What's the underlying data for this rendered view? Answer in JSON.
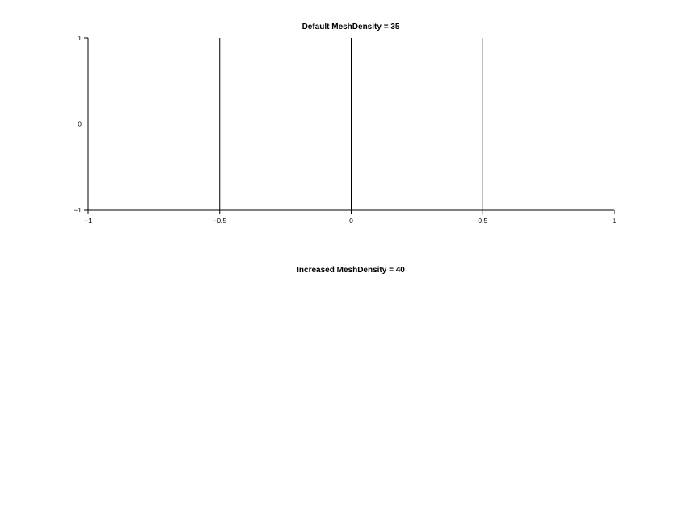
{
  "chart_data": [
    {
      "type": "line",
      "title": "Default MeshDensity = 35",
      "xlabel": "",
      "ylabel": "",
      "xlim": [
        -1,
        1
      ],
      "ylim": [
        -1,
        1
      ],
      "x_ticks": [
        -1,
        -0.5,
        0,
        0.5,
        1
      ],
      "x_tick_labels": [
        "−1",
        "−0.5",
        "0",
        "0.5",
        "1"
      ],
      "y_ticks": [
        -1,
        0,
        1
      ],
      "y_tick_labels": [
        "−1",
        "0",
        "1"
      ],
      "grid": false,
      "series": [
        {
          "x": [
            -1,
            1
          ],
          "y": [
            0,
            0
          ]
        },
        {
          "x": [
            -0.5,
            -0.5
          ],
          "y": [
            -1,
            1
          ]
        },
        {
          "x": [
            0,
            0
          ],
          "y": [
            -1,
            1
          ]
        },
        {
          "x": [
            0.5,
            0.5
          ],
          "y": [
            -1,
            1
          ]
        }
      ]
    },
    {
      "type": "line",
      "title": "Increased MeshDensity = 40",
      "xlabel": "",
      "ylabel": "",
      "series": []
    }
  ]
}
